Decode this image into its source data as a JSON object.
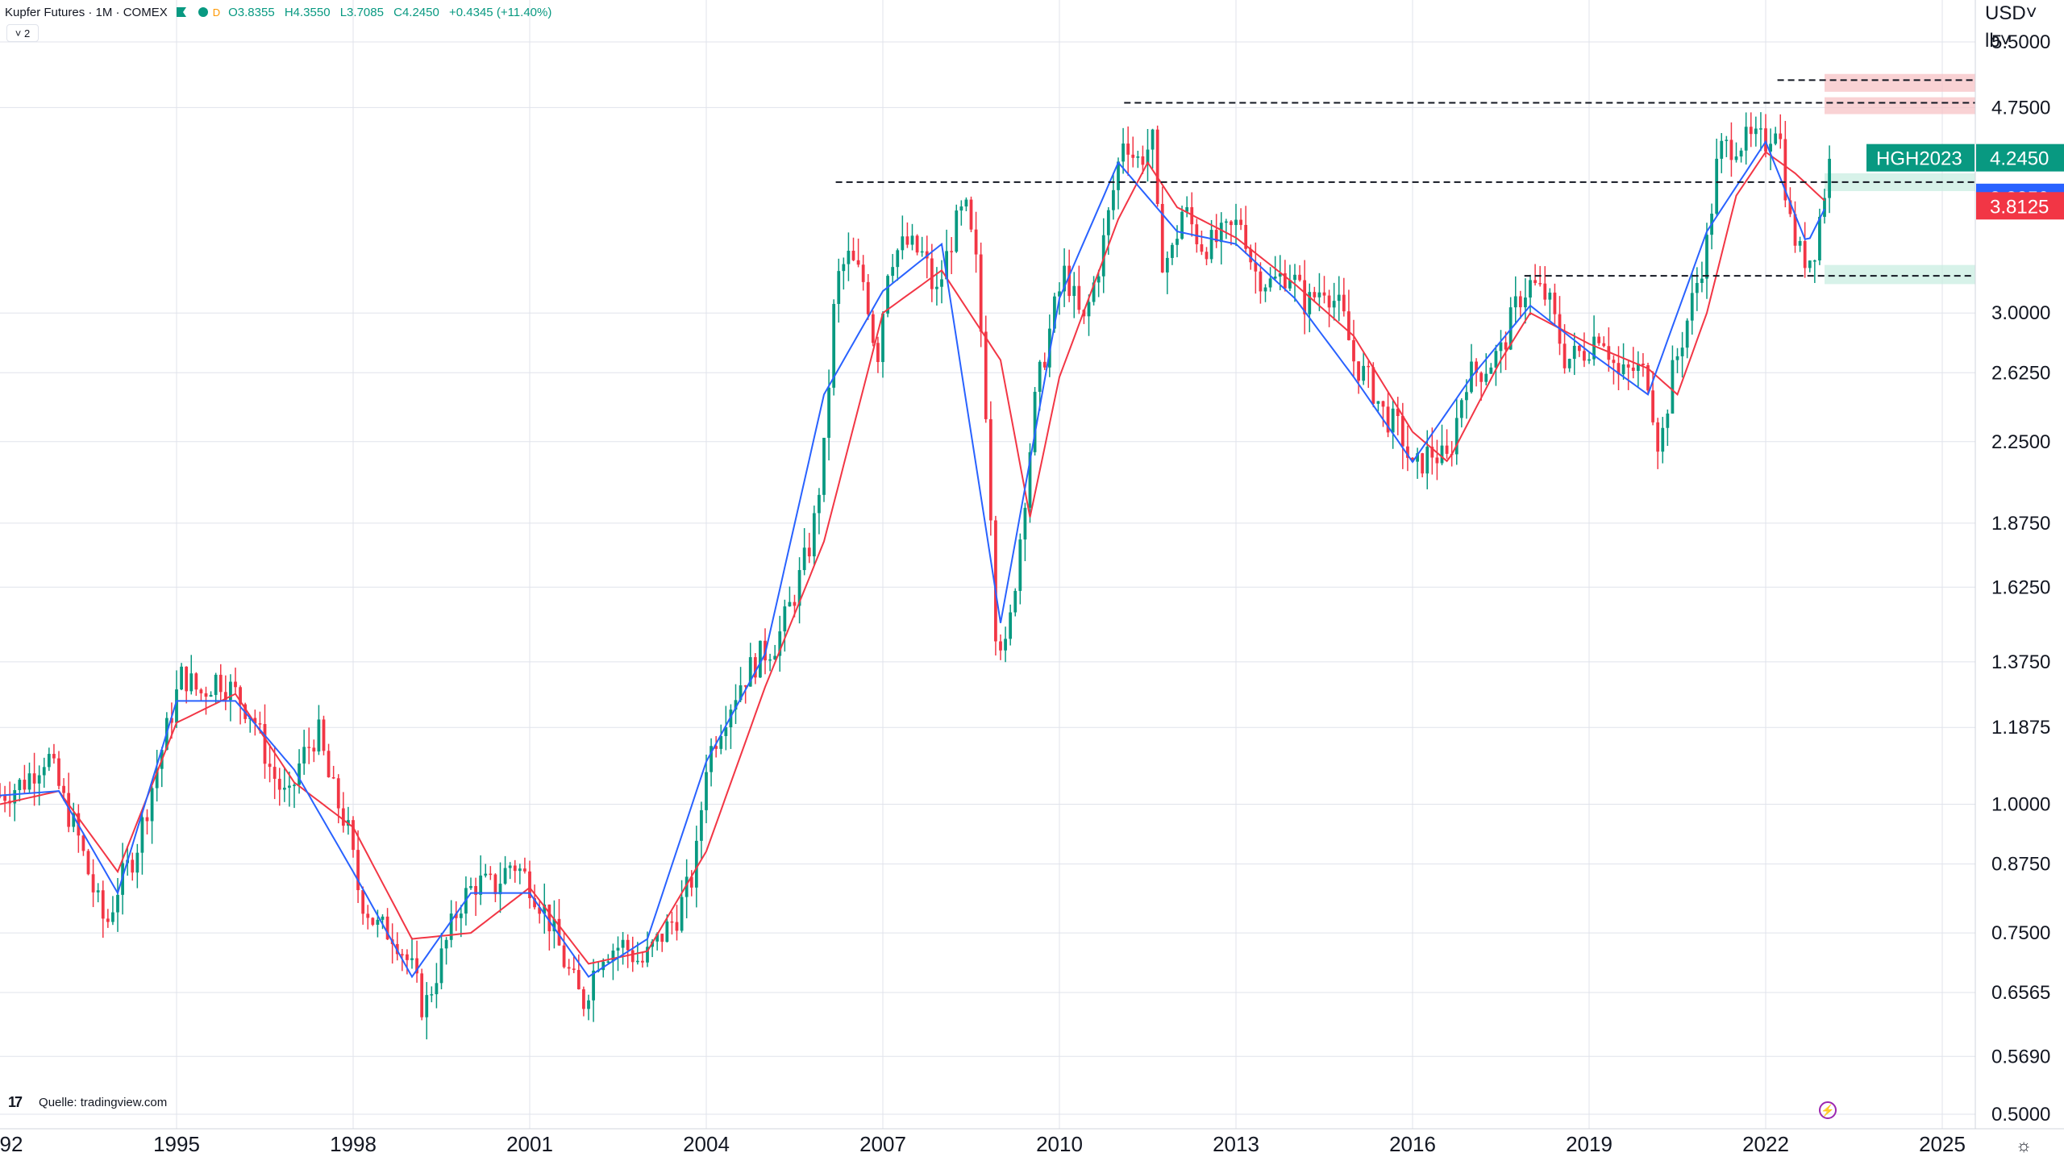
{
  "legend": {
    "title": "Kupfer Futures · 1M · COMEX",
    "open": "O3.8355",
    "high": "H4.3550",
    "low": "L3.7085",
    "close": "C4.2450",
    "change": "+0.4345 (+11.40%)",
    "collapse": "˅ 2",
    "dot_label": "D"
  },
  "source": {
    "logo": "17",
    "text": "Quelle: tradingview.com"
  },
  "colors": {
    "up": "#089981",
    "down": "#f23645",
    "ma_slow": "#f23645",
    "ma_fast": "#2962ff",
    "grid": "#e0e3eb",
    "resistance_zone": "#f7c3c6",
    "support_zone": "#c9ede1"
  },
  "chart_data": {
    "type": "candlestick",
    "scale": "log",
    "unit_label": [
      "USD˅",
      "lb˅"
    ],
    "ylim": [
      0.5,
      5.8
    ],
    "y_ticks": [
      "5.5000",
      "4.7500",
      "3.0000",
      "2.6250",
      "2.2500",
      "1.8750",
      "1.6250",
      "1.3750",
      "1.1875",
      "1.0000",
      "0.8750",
      "0.7500",
      "0.6565",
      "0.5690",
      "0.5000"
    ],
    "x_ticks": [
      "92",
      "1995",
      "1998",
      "2001",
      "2004",
      "2007",
      "2010",
      "2013",
      "2016",
      "2019",
      "2022",
      "2025"
    ],
    "x_range": [
      1992.0,
      2025.5
    ],
    "price_labels": [
      {
        "label": "HGH2023",
        "value": "4.2450",
        "price": 4.245,
        "color": "#089981"
      },
      {
        "label": "",
        "value": "3.8850",
        "price": 3.885,
        "color": "#2962ff"
      },
      {
        "label": "",
        "value": "3.8125",
        "price": 3.8125,
        "color": "#f23645"
      }
    ],
    "horizontal_levels": [
      {
        "price": 4.8,
        "x_start": 2011.1
      },
      {
        "price": 4.02,
        "x_start": 2006.2
      },
      {
        "price": 3.26,
        "x_start": 2017.9
      },
      {
        "price": 5.05,
        "x_start": 2022.2
      }
    ],
    "zones": [
      {
        "from": 4.92,
        "to": 5.12,
        "x_start": 2023.0,
        "type": "resistance"
      },
      {
        "from": 4.68,
        "to": 4.86,
        "x_start": 2023.0,
        "type": "resistance"
      },
      {
        "from": 3.94,
        "to": 4.1,
        "x_start": 2023.0,
        "type": "support"
      },
      {
        "from": 3.2,
        "to": 3.34,
        "x_start": 2023.0,
        "type": "support"
      }
    ],
    "series": [
      {
        "name": "close",
        "points": [
          [
            1992.0,
            1.02
          ],
          [
            1992.4,
            1.05
          ],
          [
            1992.8,
            1.12
          ],
          [
            1993.1,
            1.0
          ],
          [
            1993.3,
            0.94
          ],
          [
            1993.6,
            0.82
          ],
          [
            1993.8,
            0.76
          ],
          [
            1994.0,
            0.83
          ],
          [
            1994.3,
            0.9
          ],
          [
            1994.6,
            1.05
          ],
          [
            1994.9,
            1.22
          ],
          [
            1995.1,
            1.34
          ],
          [
            1995.4,
            1.28
          ],
          [
            1995.7,
            1.33
          ],
          [
            1996.0,
            1.28
          ],
          [
            1996.3,
            1.22
          ],
          [
            1996.6,
            1.08
          ],
          [
            1996.9,
            1.0
          ],
          [
            1997.1,
            1.1
          ],
          [
            1997.4,
            1.18
          ],
          [
            1997.6,
            1.05
          ],
          [
            1997.9,
            0.95
          ],
          [
            1998.1,
            0.82
          ],
          [
            1998.4,
            0.76
          ],
          [
            1998.7,
            0.75
          ],
          [
            1999.0,
            0.69
          ],
          [
            1999.2,
            0.63
          ],
          [
            1999.5,
            0.71
          ],
          [
            1999.8,
            0.8
          ],
          [
            2000.1,
            0.84
          ],
          [
            2000.4,
            0.83
          ],
          [
            2000.7,
            0.88
          ],
          [
            2001.0,
            0.84
          ],
          [
            2001.3,
            0.78
          ],
          [
            2001.6,
            0.7
          ],
          [
            2001.9,
            0.64
          ],
          [
            2002.2,
            0.72
          ],
          [
            2002.6,
            0.73
          ],
          [
            2002.9,
            0.7
          ],
          [
            2003.2,
            0.74
          ],
          [
            2003.5,
            0.78
          ],
          [
            2003.8,
            0.86
          ],
          [
            2004.0,
            1.1
          ],
          [
            2004.3,
            1.22
          ],
          [
            2004.6,
            1.32
          ],
          [
            2004.9,
            1.39
          ],
          [
            2005.2,
            1.44
          ],
          [
            2005.5,
            1.6
          ],
          [
            2005.8,
            1.82
          ],
          [
            2006.0,
            2.2
          ],
          [
            2006.2,
            3.2
          ],
          [
            2006.4,
            3.4
          ],
          [
            2006.7,
            3.2
          ],
          [
            2006.9,
            2.7
          ],
          [
            2007.1,
            3.4
          ],
          [
            2007.4,
            3.5
          ],
          [
            2007.7,
            3.4
          ],
          [
            2007.9,
            3.1
          ],
          [
            2008.2,
            3.6
          ],
          [
            2008.4,
            3.8
          ],
          [
            2008.6,
            3.3
          ],
          [
            2008.8,
            2.2
          ],
          [
            2008.9,
            1.5
          ],
          [
            2009.1,
            1.4
          ],
          [
            2009.3,
            1.75
          ],
          [
            2009.6,
            2.5
          ],
          [
            2009.9,
            3.0
          ],
          [
            2010.1,
            3.3
          ],
          [
            2010.4,
            2.9
          ],
          [
            2010.7,
            3.4
          ],
          [
            2010.9,
            3.9
          ],
          [
            2011.1,
            4.5
          ],
          [
            2011.3,
            4.2
          ],
          [
            2011.6,
            4.4
          ],
          [
            2011.7,
            3.4
          ],
          [
            2011.9,
            3.4
          ],
          [
            2012.1,
            3.8
          ],
          [
            2012.4,
            3.5
          ],
          [
            2012.6,
            3.5
          ],
          [
            2012.9,
            3.6
          ],
          [
            2013.1,
            3.7
          ],
          [
            2013.3,
            3.3
          ],
          [
            2013.6,
            3.2
          ],
          [
            2013.9,
            3.3
          ],
          [
            2014.2,
            3.05
          ],
          [
            2014.5,
            3.2
          ],
          [
            2014.8,
            3.0
          ],
          [
            2015.0,
            2.7
          ],
          [
            2015.3,
            2.55
          ],
          [
            2015.5,
            2.4
          ],
          [
            2015.8,
            2.3
          ],
          [
            2016.0,
            2.1
          ],
          [
            2016.3,
            2.2
          ],
          [
            2016.6,
            2.15
          ],
          [
            2016.9,
            2.6
          ],
          [
            2017.2,
            2.65
          ],
          [
            2017.5,
            2.75
          ],
          [
            2017.8,
            3.1
          ],
          [
            2018.0,
            3.2
          ],
          [
            2018.3,
            3.1
          ],
          [
            2018.6,
            2.7
          ],
          [
            2018.9,
            2.75
          ],
          [
            2019.2,
            2.9
          ],
          [
            2019.5,
            2.6
          ],
          [
            2019.8,
            2.65
          ],
          [
            2020.0,
            2.6
          ],
          [
            2020.2,
            2.2
          ],
          [
            2020.4,
            2.6
          ],
          [
            2020.7,
            3.0
          ],
          [
            2021.0,
            3.5
          ],
          [
            2021.2,
            4.3
          ],
          [
            2021.5,
            4.4
          ],
          [
            2021.8,
            4.4
          ],
          [
            2022.0,
            4.4
          ],
          [
            2022.2,
            4.65
          ],
          [
            2022.4,
            3.7
          ],
          [
            2022.6,
            3.4
          ],
          [
            2022.8,
            3.4
          ],
          [
            2022.95,
            3.81
          ],
          [
            2023.1,
            4.245
          ]
        ]
      },
      {
        "name": "",
        "points": [
          [
            1992.0,
            1.0
          ],
          [
            1993.0,
            1.03
          ],
          [
            1994.0,
            0.86
          ],
          [
            1995.0,
            1.2
          ],
          [
            1996.0,
            1.28
          ],
          [
            1997.0,
            1.05
          ],
          [
            1998.0,
            0.95
          ],
          [
            1999.0,
            0.74
          ],
          [
            2000.0,
            0.75
          ],
          [
            2001.0,
            0.83
          ],
          [
            2002.0,
            0.7
          ],
          [
            2003.0,
            0.72
          ],
          [
            2004.0,
            0.9
          ],
          [
            2005.0,
            1.3
          ],
          [
            2006.0,
            1.8
          ],
          [
            2007.0,
            3.0
          ],
          [
            2008.0,
            3.3
          ],
          [
            2009.0,
            2.7
          ],
          [
            2009.5,
            1.9
          ],
          [
            2010.0,
            2.6
          ],
          [
            2011.0,
            3.7
          ],
          [
            2011.5,
            4.2
          ],
          [
            2012.0,
            3.8
          ],
          [
            2013.0,
            3.55
          ],
          [
            2014.0,
            3.2
          ],
          [
            2015.0,
            2.85
          ],
          [
            2016.0,
            2.3
          ],
          [
            2016.6,
            2.15
          ],
          [
            2017.5,
            2.7
          ],
          [
            2018.0,
            3.0
          ],
          [
            2019.0,
            2.8
          ],
          [
            2020.0,
            2.65
          ],
          [
            2020.5,
            2.5
          ],
          [
            2021.0,
            3.0
          ],
          [
            2021.5,
            3.9
          ],
          [
            2022.0,
            4.3
          ],
          [
            2022.5,
            4.1
          ],
          [
            2023.1,
            3.81
          ]
        ]
      },
      {
        "name": "",
        "points": [
          [
            1992.0,
            1.02
          ],
          [
            1993.0,
            1.03
          ],
          [
            1994.0,
            0.82
          ],
          [
            1995.0,
            1.26
          ],
          [
            1996.0,
            1.26
          ],
          [
            1997.0,
            1.08
          ],
          [
            1998.0,
            0.86
          ],
          [
            1999.0,
            0.68
          ],
          [
            2000.0,
            0.82
          ],
          [
            2001.0,
            0.82
          ],
          [
            2002.0,
            0.68
          ],
          [
            2003.0,
            0.74
          ],
          [
            2004.0,
            1.1
          ],
          [
            2005.0,
            1.4
          ],
          [
            2006.0,
            2.5
          ],
          [
            2007.0,
            3.15
          ],
          [
            2008.0,
            3.5
          ],
          [
            2009.0,
            1.5
          ],
          [
            2010.0,
            3.1
          ],
          [
            2011.0,
            4.2
          ],
          [
            2012.0,
            3.6
          ],
          [
            2013.0,
            3.5
          ],
          [
            2014.0,
            3.1
          ],
          [
            2015.0,
            2.6
          ],
          [
            2016.0,
            2.15
          ],
          [
            2017.0,
            2.6
          ],
          [
            2018.0,
            3.05
          ],
          [
            2019.0,
            2.75
          ],
          [
            2020.0,
            2.5
          ],
          [
            2021.0,
            3.6
          ],
          [
            2022.0,
            4.4
          ],
          [
            2022.7,
            3.5
          ],
          [
            2023.1,
            3.885
          ]
        ]
      }
    ]
  }
}
